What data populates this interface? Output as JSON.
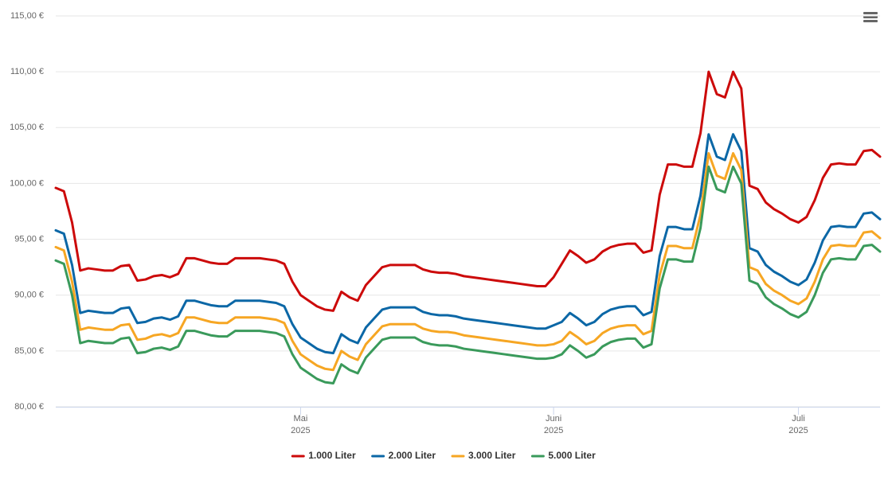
{
  "chart_data": {
    "type": "line",
    "categories": [
      null,
      null,
      null,
      null,
      null,
      null,
      null,
      null,
      null,
      null,
      null,
      null,
      null,
      null,
      null,
      null,
      null,
      null,
      null,
      null,
      null,
      null,
      null,
      null,
      null,
      null,
      null,
      null,
      null,
      null,
      [
        "Mai",
        "2025"
      ],
      null,
      null,
      null,
      null,
      null,
      null,
      null,
      null,
      null,
      null,
      null,
      null,
      null,
      null,
      null,
      null,
      null,
      null,
      null,
      null,
      null,
      null,
      null,
      null,
      null,
      null,
      null,
      null,
      null,
      null,
      [
        "Juni",
        "2025"
      ],
      null,
      null,
      null,
      null,
      null,
      null,
      null,
      null,
      null,
      null,
      null,
      null,
      null,
      null,
      null,
      null,
      null,
      null,
      null,
      null,
      null,
      null,
      null,
      null,
      null,
      null,
      null,
      null,
      null,
      [
        "Juli",
        "2025"
      ],
      null,
      null,
      null,
      null,
      null,
      null,
      null,
      null,
      null,
      null
    ],
    "series": [
      {
        "name": "1.000 Liter",
        "color": "#cc0a0a",
        "values": [
          99.6,
          99.3,
          96.5,
          92.2,
          92.4,
          92.3,
          92.2,
          92.2,
          92.6,
          92.7,
          91.3,
          91.4,
          91.7,
          91.8,
          91.6,
          91.9,
          93.3,
          93.3,
          93.1,
          92.9,
          92.8,
          92.8,
          93.3,
          93.3,
          93.3,
          93.3,
          93.2,
          93.1,
          92.8,
          91.2,
          90.0,
          89.5,
          89.0,
          88.7,
          88.6,
          90.3,
          89.8,
          89.5,
          90.9,
          91.7,
          92.5,
          92.7,
          92.7,
          92.7,
          92.7,
          92.3,
          92.1,
          92.0,
          92.0,
          91.9,
          91.7,
          91.6,
          91.5,
          91.4,
          91.3,
          91.2,
          91.1,
          91.0,
          90.9,
          90.8,
          90.8,
          91.6,
          92.8,
          94.0,
          93.5,
          92.9,
          93.2,
          93.9,
          94.3,
          94.5,
          94.6,
          94.6,
          93.8,
          94.0,
          99.0,
          101.7,
          101.7,
          101.5,
          101.5,
          104.5,
          110.0,
          108.0,
          107.7,
          110.0,
          108.5,
          99.8,
          99.5,
          98.3,
          97.7,
          97.3,
          96.8,
          96.5,
          97.0,
          98.5,
          100.5,
          101.7,
          101.8,
          101.7,
          101.7,
          102.9,
          103.0,
          102.4
        ]
      },
      {
        "name": "2.000 Liter",
        "color": "#0b67a6",
        "values": [
          95.8,
          95.5,
          92.7,
          88.4,
          88.6,
          88.5,
          88.4,
          88.4,
          88.8,
          88.9,
          87.5,
          87.6,
          87.9,
          88.0,
          87.8,
          88.1,
          89.5,
          89.5,
          89.3,
          89.1,
          89.0,
          89.0,
          89.5,
          89.5,
          89.5,
          89.5,
          89.4,
          89.3,
          89.0,
          87.4,
          86.2,
          85.7,
          85.2,
          84.9,
          84.8,
          86.5,
          86.0,
          85.7,
          87.1,
          87.9,
          88.7,
          88.9,
          88.9,
          88.9,
          88.9,
          88.5,
          88.3,
          88.2,
          88.2,
          88.1,
          87.9,
          87.8,
          87.7,
          87.6,
          87.5,
          87.4,
          87.3,
          87.2,
          87.1,
          87.0,
          87.0,
          87.3,
          87.6,
          88.4,
          87.9,
          87.3,
          87.6,
          88.3,
          88.7,
          88.9,
          89.0,
          89.0,
          88.2,
          88.5,
          93.5,
          96.1,
          96.1,
          95.9,
          95.9,
          98.9,
          104.4,
          102.4,
          102.1,
          104.4,
          102.9,
          94.2,
          93.9,
          92.7,
          92.1,
          91.7,
          91.2,
          90.9,
          91.4,
          92.9,
          94.9,
          96.1,
          96.2,
          96.1,
          96.1,
          97.3,
          97.4,
          96.8
        ]
      },
      {
        "name": "3.000 Liter",
        "color": "#f6a623",
        "values": [
          94.3,
          94.0,
          91.2,
          86.9,
          87.1,
          87.0,
          86.9,
          86.9,
          87.3,
          87.4,
          86.0,
          86.1,
          86.4,
          86.5,
          86.3,
          86.6,
          88.0,
          88.0,
          87.8,
          87.6,
          87.5,
          87.5,
          88.0,
          88.0,
          88.0,
          88.0,
          87.9,
          87.8,
          87.5,
          85.9,
          84.7,
          84.2,
          83.7,
          83.4,
          83.3,
          85.0,
          84.5,
          84.2,
          85.6,
          86.4,
          87.2,
          87.4,
          87.4,
          87.4,
          87.4,
          87.0,
          86.8,
          86.7,
          86.7,
          86.6,
          86.4,
          86.3,
          86.2,
          86.1,
          86.0,
          85.9,
          85.8,
          85.7,
          85.6,
          85.5,
          85.5,
          85.6,
          85.9,
          86.7,
          86.2,
          85.6,
          85.9,
          86.6,
          87.0,
          87.2,
          87.3,
          87.3,
          86.5,
          86.8,
          91.8,
          94.4,
          94.4,
          94.2,
          94.2,
          97.2,
          102.7,
          100.7,
          100.4,
          102.7,
          101.2,
          92.5,
          92.2,
          91.0,
          90.4,
          90.0,
          89.5,
          89.2,
          89.7,
          91.2,
          93.2,
          94.4,
          94.5,
          94.4,
          94.4,
          95.6,
          95.7,
          95.1
        ]
      },
      {
        "name": "5.000 Liter",
        "color": "#3a9a5b",
        "values": [
          93.1,
          92.8,
          90.0,
          85.7,
          85.9,
          85.8,
          85.7,
          85.7,
          86.1,
          86.2,
          84.8,
          84.9,
          85.2,
          85.3,
          85.1,
          85.4,
          86.8,
          86.8,
          86.6,
          86.4,
          86.3,
          86.3,
          86.8,
          86.8,
          86.8,
          86.8,
          86.7,
          86.6,
          86.3,
          84.7,
          83.5,
          83.0,
          82.5,
          82.2,
          82.1,
          83.8,
          83.3,
          83.0,
          84.4,
          85.2,
          86.0,
          86.2,
          86.2,
          86.2,
          86.2,
          85.8,
          85.6,
          85.5,
          85.5,
          85.4,
          85.2,
          85.1,
          85.0,
          84.9,
          84.8,
          84.7,
          84.6,
          84.5,
          84.4,
          84.3,
          84.3,
          84.4,
          84.7,
          85.5,
          85.0,
          84.4,
          84.7,
          85.4,
          85.8,
          86.0,
          86.1,
          86.1,
          85.3,
          85.6,
          90.6,
          93.2,
          93.2,
          93.0,
          93.0,
          96.0,
          101.5,
          99.5,
          99.2,
          101.5,
          100.0,
          91.3,
          91.0,
          89.8,
          89.2,
          88.8,
          88.3,
          88.0,
          88.5,
          90.0,
          92.0,
          93.2,
          93.3,
          93.2,
          93.2,
          94.4,
          94.5,
          93.9
        ]
      }
    ],
    "ylim": [
      80,
      115
    ],
    "yticks": [
      {
        "value": 80,
        "label": "80,00 €"
      },
      {
        "value": 85,
        "label": "85,00 €"
      },
      {
        "value": 90,
        "label": "90,00 €"
      },
      {
        "value": 95,
        "label": "95,00 €"
      },
      {
        "value": 100,
        "label": "100,00 €"
      },
      {
        "value": 105,
        "label": "105,00 €"
      },
      {
        "value": 110,
        "label": "110,00 €"
      },
      {
        "value": 115,
        "label": "115,00 €"
      }
    ],
    "grid": true,
    "legend": "bottom"
  }
}
